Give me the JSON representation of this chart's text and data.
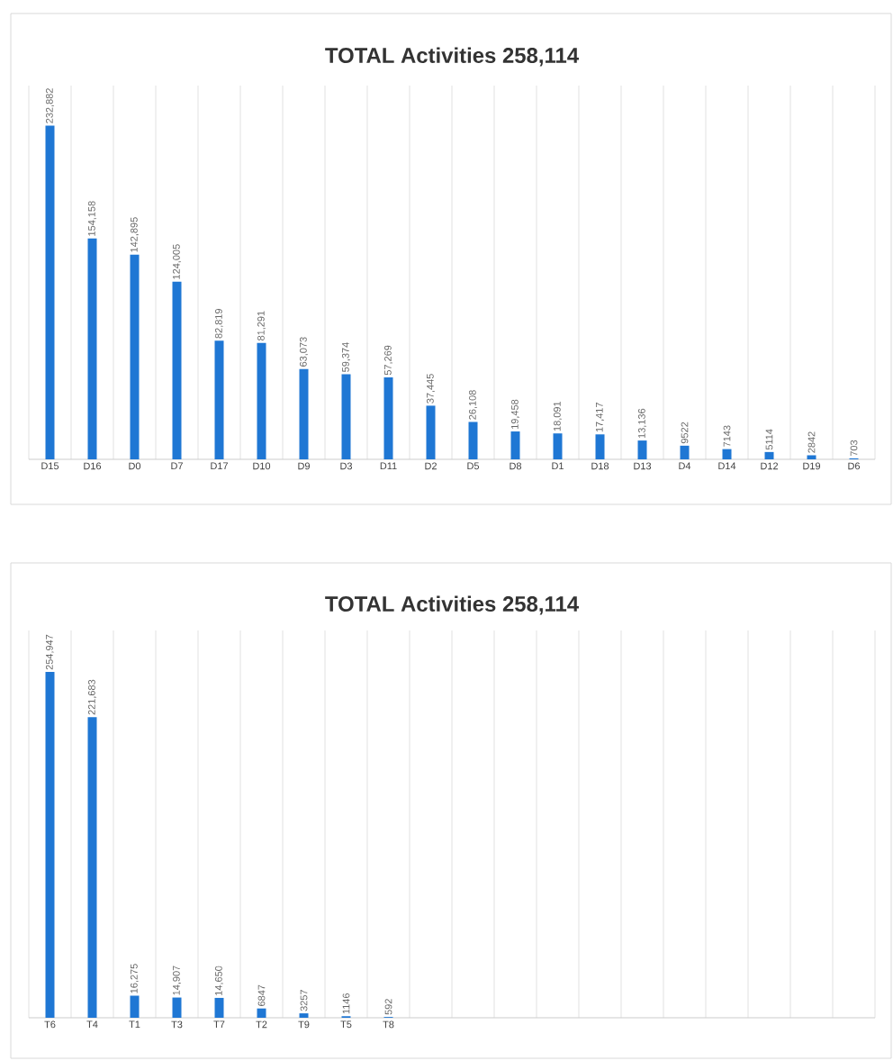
{
  "chart_data": [
    {
      "type": "bar",
      "title": "TOTAL Activities 258,114",
      "categories": [
        "D15",
        "D16",
        "D0",
        "D7",
        "D17",
        "D10",
        "D9",
        "D3",
        "D11",
        "D2",
        "D5",
        "D8",
        "D1",
        "D18",
        "D13",
        "D4",
        "D14",
        "D12",
        "D19",
        "D6"
      ],
      "values": [
        232882,
        154158,
        142895,
        124005,
        82819,
        81291,
        63073,
        59374,
        57269,
        37445,
        26108,
        19458,
        18091,
        17417,
        13136,
        9522,
        7143,
        5114,
        2842,
        703
      ],
      "value_labels": [
        "232,882",
        "154,158",
        "142,895",
        "124,005",
        "82,819",
        "81,291",
        "63,073",
        "59,374",
        "57,269",
        "37,445",
        "26,108",
        "19,458",
        "18,091",
        "17,417",
        "13,136",
        "9522",
        "7143",
        "5114",
        "2842",
        "703"
      ],
      "color": "#1f77d4",
      "grid": "x"
    },
    {
      "type": "bar",
      "title": "TOTAL Activities 258,114",
      "categories": [
        "T6",
        "T4",
        "T1",
        "T3",
        "T7",
        "T2",
        "T9",
        "T5",
        "T8",
        null,
        null,
        null,
        null,
        null,
        null,
        null,
        null,
        null,
        null,
        null
      ],
      "values": [
        254947,
        221683,
        16275,
        14907,
        14650,
        6847,
        3257,
        1146,
        592,
        null,
        null,
        null,
        null,
        null,
        null,
        null,
        null,
        null,
        null,
        null
      ],
      "value_labels": [
        "254,947",
        "221,683",
        "16,275",
        "14,907",
        "14,650",
        "6847",
        "3257",
        "1146",
        "592",
        null,
        null,
        null,
        null,
        null,
        null,
        null,
        null,
        null,
        null,
        null
      ],
      "color": "#1f77d4",
      "grid": "x"
    }
  ]
}
